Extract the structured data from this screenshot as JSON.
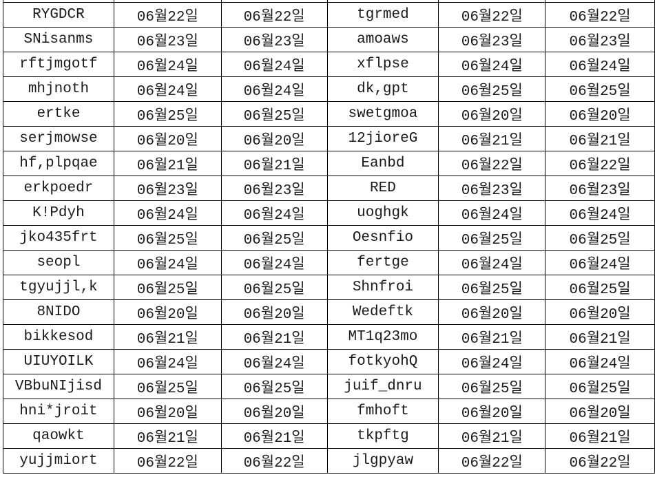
{
  "table": {
    "rows": [
      [
        "RYGDCR",
        "06월22일",
        "06월22일",
        "tgrmed",
        "06월22일",
        "06월22일"
      ],
      [
        "SNisanms",
        "06월23일",
        "06월23일",
        "amoaws",
        "06월23일",
        "06월23일"
      ],
      [
        "rftjmgotf",
        "06월24일",
        "06월24일",
        "xflpse",
        "06월24일",
        "06월24일"
      ],
      [
        "mhjnoth",
        "06월24일",
        "06월24일",
        "dk,gpt",
        "06월25일",
        "06월25일"
      ],
      [
        "ertke",
        "06월25일",
        "06월25일",
        "swetgmoa",
        "06월20일",
        "06월20일"
      ],
      [
        "serjmowse",
        "06월20일",
        "06월20일",
        "12jioreG",
        "06월21일",
        "06월21일"
      ],
      [
        "hf,plpqae",
        "06월21일",
        "06월21일",
        "Eanbd",
        "06월22일",
        "06월22일"
      ],
      [
        "erkpoedr",
        "06월23일",
        "06월23일",
        "RED",
        "06월23일",
        "06월23일"
      ],
      [
        "K!Pdyh",
        "06월24일",
        "06월24일",
        "uoghgk",
        "06월24일",
        "06월24일"
      ],
      [
        "jko435frt",
        "06월25일",
        "06월25일",
        "Oesnfio",
        "06월25일",
        "06월25일"
      ],
      [
        "seopl",
        "06월24일",
        "06월24일",
        "fertge",
        "06월24일",
        "06월24일"
      ],
      [
        "tgyujjl,k",
        "06월25일",
        "06월25일",
        "Shnfroi",
        "06월25일",
        "06월25일"
      ],
      [
        "8NIDO",
        "06월20일",
        "06월20일",
        "Wedeftk",
        "06월20일",
        "06월20일"
      ],
      [
        "bikkesod",
        "06월21일",
        "06월21일",
        "MT1q23mo",
        "06월21일",
        "06월21일"
      ],
      [
        "UIUYOILK",
        "06월24일",
        "06월24일",
        "fotkyohQ",
        "06월24일",
        "06월24일"
      ],
      [
        "VBbuNIjisd",
        "06월25일",
        "06월25일",
        "juif_dnru",
        "06월25일",
        "06월25일"
      ],
      [
        "hni*jroit",
        "06월20일",
        "06월20일",
        "fmhoft",
        "06월20일",
        "06월20일"
      ],
      [
        "qaowkt",
        "06월21일",
        "06월21일",
        "tkpftg",
        "06월21일",
        "06월21일"
      ],
      [
        "yujjmiort",
        "06월22일",
        "06월22일",
        "jlgpyaw",
        "06월22일",
        "06월22일"
      ]
    ]
  }
}
